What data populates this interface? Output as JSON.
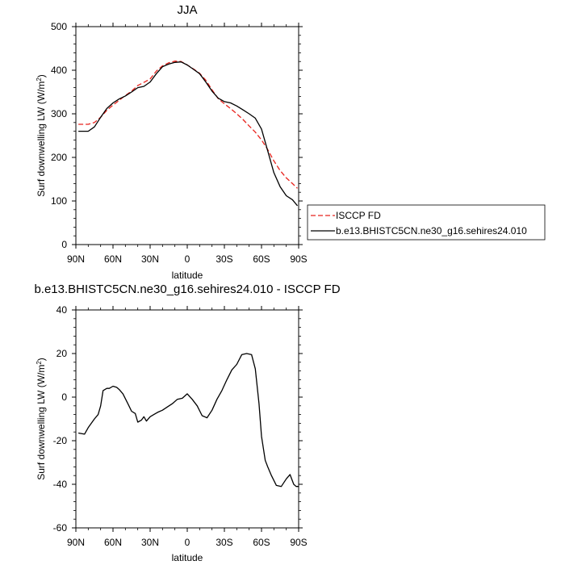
{
  "chart_data": [
    {
      "type": "line",
      "title": "JJA",
      "xlabel": "latitude",
      "ylabel_main": "Surf downwelling LW (W/m",
      "ylabel_sup": "2",
      "ylabel_close": ")",
      "x_axis_note": "degrees latitude, positive = north",
      "xlim": [
        90,
        -90
      ],
      "ylim": [
        0,
        500
      ],
      "xticks": [
        {
          "value": 90,
          "label": "90N"
        },
        {
          "value": 60,
          "label": "60N"
        },
        {
          "value": 30,
          "label": "30N"
        },
        {
          "value": 0,
          "label": "0"
        },
        {
          "value": -30,
          "label": "30S"
        },
        {
          "value": -60,
          "label": "60S"
        },
        {
          "value": -90,
          "label": "90S"
        }
      ],
      "yticks": [
        0,
        100,
        200,
        300,
        400,
        500
      ],
      "grid": false,
      "legend_position": "right",
      "series": [
        {
          "name": "ISCCP FD",
          "color": "#e8231d",
          "dash": "dashed",
          "x": [
            88,
            80,
            75,
            70,
            65,
            60,
            55,
            50,
            45,
            40,
            35,
            30,
            25,
            20,
            15,
            10,
            5,
            0,
            -5,
            -10,
            -15,
            -20,
            -25,
            -30,
            -35,
            -40,
            -45,
            -50,
            -55,
            -60,
            -65,
            -70,
            -75,
            -80,
            -85,
            -89
          ],
          "values": [
            276,
            276,
            280,
            292,
            308,
            320,
            331,
            342,
            352,
            365,
            372,
            380,
            398,
            410,
            417,
            421,
            420,
            412,
            403,
            393,
            377,
            355,
            335,
            323,
            312,
            300,
            287,
            272,
            258,
            240,
            218,
            192,
            170,
            153,
            140,
            129
          ]
        },
        {
          "name": "b.e13.BHISTC5CN.ne30_g16.sehires24.010",
          "color": "#000000",
          "dash": "solid",
          "x": [
            88,
            80,
            75,
            70,
            65,
            60,
            55,
            50,
            45,
            40,
            35,
            30,
            25,
            20,
            15,
            10,
            5,
            0,
            -5,
            -10,
            -15,
            -20,
            -25,
            -30,
            -35,
            -40,
            -45,
            -50,
            -55,
            -60,
            -65,
            -70,
            -75,
            -80,
            -85,
            -89
          ],
          "values": [
            260,
            260,
            270,
            292,
            312,
            325,
            334,
            341,
            350,
            360,
            363,
            373,
            392,
            408,
            414,
            418,
            419,
            412,
            402,
            392,
            373,
            352,
            336,
            328,
            325,
            318,
            309,
            300,
            290,
            265,
            215,
            165,
            133,
            112,
            103,
            89
          ]
        }
      ]
    },
    {
      "type": "line",
      "title": "b.e13.BHISTC5CN.ne30_g16.sehires24.010 - ISCCP FD",
      "xlabel": "latitude",
      "ylabel_main": "Surf downwelling LW (W/m",
      "ylabel_sup": "2",
      "ylabel_close": ")",
      "xlim": [
        90,
        -90
      ],
      "ylim": [
        -60,
        40
      ],
      "xticks": [
        {
          "value": 90,
          "label": "90N"
        },
        {
          "value": 60,
          "label": "60N"
        },
        {
          "value": 30,
          "label": "30N"
        },
        {
          "value": 0,
          "label": "0"
        },
        {
          "value": -30,
          "label": "30S"
        },
        {
          "value": -60,
          "label": "60S"
        },
        {
          "value": -90,
          "label": "90S"
        }
      ],
      "yticks": [
        -60,
        -40,
        -20,
        0,
        20,
        40
      ],
      "grid": false,
      "series": [
        {
          "color": "#000000",
          "dash": "solid",
          "x": [
            88,
            83,
            80,
            75,
            72,
            70,
            68,
            65,
            63,
            60,
            57,
            55,
            52,
            48,
            45,
            42,
            40,
            37,
            35,
            33,
            30,
            27,
            24,
            20,
            16,
            12,
            8,
            4,
            0,
            -4,
            -8,
            -12,
            -16,
            -20,
            -24,
            -28,
            -32,
            -36,
            -40,
            -44,
            -48,
            -52,
            -55,
            -58,
            -60,
            -63,
            -65,
            -68,
            -72,
            -76,
            -80,
            -83,
            -86,
            -88,
            -90
          ],
          "values": [
            -16.5,
            -17,
            -14,
            -10,
            -8,
            -4,
            3,
            4,
            4,
            5,
            4.5,
            3.5,
            1.5,
            -3,
            -6.5,
            -7.5,
            -11.5,
            -10.5,
            -9,
            -11,
            -9,
            -8,
            -7,
            -6,
            -4.5,
            -3,
            -1,
            -0.5,
            1.5,
            -1,
            -4,
            -8.5,
            -9.5,
            -6,
            -1,
            3,
            8,
            12.5,
            15,
            19.5,
            20,
            19.5,
            13,
            -3,
            -18,
            -29,
            -32,
            -36,
            -40.5,
            -41,
            -37.5,
            -35.5,
            -40,
            -41,
            -41
          ]
        }
      ]
    }
  ]
}
